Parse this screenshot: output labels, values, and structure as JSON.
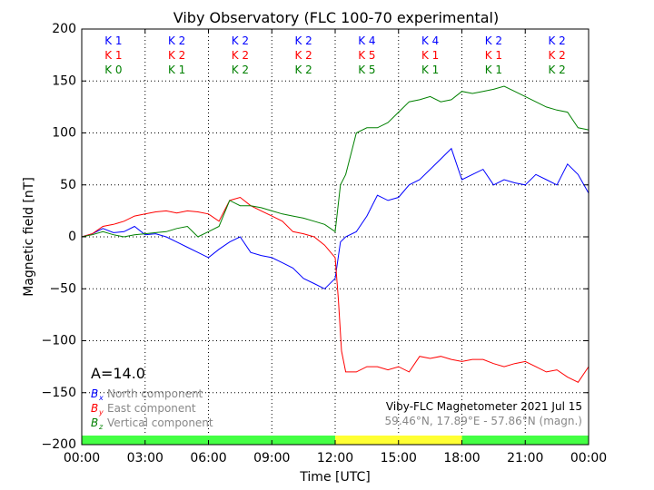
{
  "chart_data": {
    "type": "line",
    "title": "Viby Observatory (FLC 100-70 experimental)",
    "xlabel": "Time [UTC]",
    "ylabel": "Magnetic field [nT]",
    "xlim": [
      0,
      24
    ],
    "ylim": [
      -200,
      200
    ],
    "grid": true,
    "xticks": [
      0,
      3,
      6,
      9,
      12,
      15,
      18,
      21,
      24
    ],
    "xtick_labels": [
      "00:00",
      "03:00",
      "06:00",
      "09:00",
      "12:00",
      "15:00",
      "18:00",
      "21:00",
      "00:00"
    ],
    "yticks": [
      -200,
      -150,
      -100,
      -50,
      0,
      50,
      100,
      150,
      200
    ],
    "ytick_labels": [
      "−200",
      "−150",
      "−100",
      "−50",
      "0",
      "50",
      "100",
      "150",
      "200"
    ],
    "k_indices": {
      "bx": [
        "K 1",
        "K 2",
        "K 2",
        "K 2",
        "K 4",
        "K 4",
        "K 2",
        "K 2"
      ],
      "by": [
        "K 1",
        "K 2",
        "K 2",
        "K 2",
        "K 5",
        "K 1",
        "K 1",
        "K 2"
      ],
      "bz": [
        "K 0",
        "K 1",
        "K 2",
        "K 2",
        "K 5",
        "K 1",
        "K 1",
        "K 2"
      ]
    },
    "activity_bar": [
      {
        "from": 0,
        "to": 12,
        "color": "#44ff44"
      },
      {
        "from": 12,
        "to": 18,
        "color": "#ffff33"
      },
      {
        "from": 18,
        "to": 24,
        "color": "#44ff44"
      }
    ],
    "a_index": "A=14.0",
    "legend_placement": "bottom-left",
    "series": [
      {
        "name": "North component",
        "symbol": "B",
        "sub": "x",
        "color": "#0000ff",
        "x": [
          0,
          0.5,
          1,
          1.5,
          2,
          2.5,
          3,
          3.5,
          4,
          4.5,
          5,
          5.5,
          6,
          6.5,
          7,
          7.5,
          8,
          8.5,
          9,
          9.5,
          10,
          10.5,
          11,
          11.5,
          12,
          12.25,
          12.5,
          13,
          13.5,
          14,
          14.5,
          15,
          15.5,
          16,
          16.5,
          17,
          17.5,
          18,
          18.5,
          19,
          19.5,
          20,
          20.5,
          21,
          21.5,
          22,
          22.5,
          23,
          23.5,
          24
        ],
        "y": [
          0,
          3,
          8,
          4,
          5,
          10,
          2,
          3,
          0,
          -5,
          -10,
          -15,
          -20,
          -12,
          -5,
          0,
          -15,
          -18,
          -20,
          -25,
          -30,
          -40,
          -45,
          -50,
          -40,
          -5,
          0,
          5,
          20,
          40,
          35,
          38,
          50,
          55,
          65,
          75,
          85,
          55,
          60,
          65,
          50,
          55,
          52,
          50,
          60,
          55,
          50,
          70,
          60,
          42
        ]
      },
      {
        "name": "East component",
        "symbol": "B",
        "sub": "y",
        "color": "#ff0000",
        "x": [
          0,
          0.5,
          1,
          1.5,
          2,
          2.5,
          3,
          3.5,
          4,
          4.5,
          5,
          5.5,
          6,
          6.5,
          7,
          7.5,
          8,
          8.5,
          9,
          9.5,
          10,
          10.5,
          11,
          11.5,
          12,
          12.15,
          12.3,
          12.5,
          13,
          13.5,
          14,
          14.5,
          15,
          15.5,
          16,
          16.5,
          17,
          17.5,
          18,
          18.5,
          19,
          19.5,
          20,
          20.5,
          21,
          21.5,
          22,
          22.5,
          23,
          23.5,
          24
        ],
        "y": [
          0,
          3,
          10,
          12,
          15,
          20,
          22,
          24,
          25,
          23,
          25,
          24,
          22,
          15,
          35,
          38,
          30,
          25,
          20,
          15,
          5,
          3,
          0,
          -8,
          -20,
          -60,
          -110,
          -130,
          -130,
          -125,
          -125,
          -128,
          -125,
          -130,
          -115,
          -117,
          -115,
          -118,
          -120,
          -118,
          -118,
          -122,
          -125,
          -122,
          -120,
          -125,
          -130,
          -128,
          -135,
          -140,
          -125
        ]
      },
      {
        "name": "Vertical component",
        "symbol": "B",
        "sub": "z",
        "color": "#008000",
        "x": [
          0,
          0.5,
          1,
          1.5,
          2,
          2.5,
          3,
          3.5,
          4,
          4.5,
          5,
          5.5,
          6,
          6.5,
          7,
          7.5,
          8,
          8.5,
          9,
          9.5,
          10,
          10.5,
          11,
          11.5,
          12,
          12.25,
          12.5,
          13,
          13.5,
          14,
          14.5,
          15,
          15.5,
          16,
          16.5,
          17,
          17.5,
          18,
          18.5,
          19,
          19.5,
          20,
          20.5,
          21,
          21.5,
          22,
          22.5,
          23,
          23.5,
          24
        ],
        "y": [
          0,
          2,
          5,
          2,
          0,
          2,
          3,
          4,
          5,
          8,
          10,
          0,
          5,
          10,
          35,
          30,
          30,
          28,
          25,
          22,
          20,
          18,
          15,
          12,
          5,
          50,
          60,
          100,
          105,
          105,
          110,
          120,
          130,
          132,
          135,
          130,
          132,
          140,
          138,
          140,
          142,
          145,
          140,
          135,
          130,
          125,
          122,
          120,
          105,
          103
        ]
      }
    ],
    "station_caption": "Viby-FLC Magnetometer 2021 Jul 15",
    "coords_caption": "59.46°N, 17.89°E - 57.86°N (magn.)"
  }
}
